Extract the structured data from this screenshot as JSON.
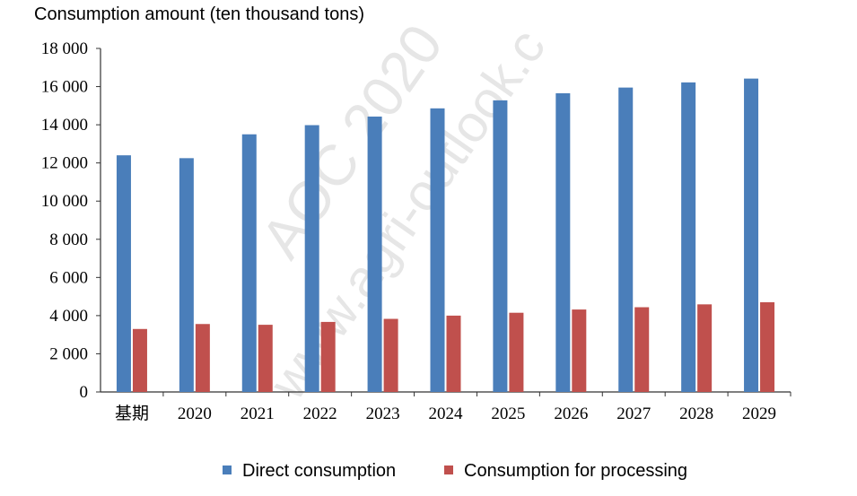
{
  "chart_data": {
    "type": "bar",
    "ylabel": "Consumption amount (ten thousand tons)",
    "categories": [
      "基期",
      "2020",
      "2021",
      "2022",
      "2023",
      "2024",
      "2025",
      "2026",
      "2027",
      "2028",
      "2029"
    ],
    "series": [
      {
        "name": "Direct consumption",
        "color": "#4a7eba",
        "values": [
          12400,
          12250,
          13500,
          13980,
          14430,
          14860,
          15280,
          15650,
          15950,
          16220,
          16420
        ]
      },
      {
        "name": "Consumption for processing",
        "color": "#c0504d",
        "values": [
          3300,
          3560,
          3520,
          3670,
          3830,
          4000,
          4150,
          4320,
          4440,
          4590,
          4700
        ]
      }
    ],
    "ylim": [
      0,
      18000
    ],
    "yticks": [
      "0",
      "2 000",
      "4 000",
      "6 000",
      "8 000",
      "10 000",
      "12 000",
      "14 000",
      "16 000",
      "18 000"
    ],
    "grid": false,
    "legend_position": "bottom"
  },
  "watermark": {
    "line1": "AOC 2020",
    "line2": "www.agri-outlook.c"
  }
}
